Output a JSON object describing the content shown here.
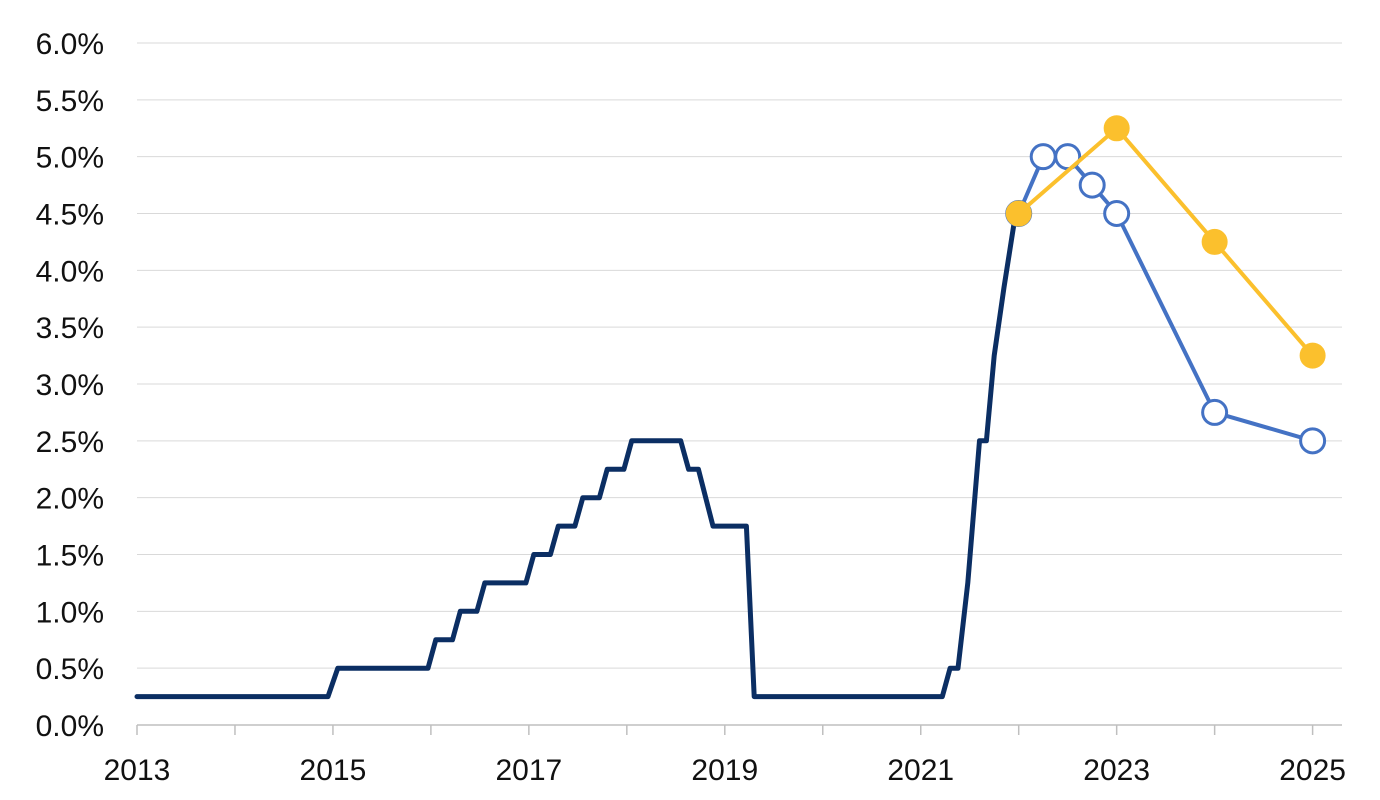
{
  "chart_data": {
    "type": "line",
    "title": "",
    "xlabel": "",
    "ylabel": "",
    "xlim": [
      2013,
      2025.3
    ],
    "ylim": [
      0,
      6
    ],
    "grid": true,
    "x_ticks": [
      {
        "value": 2013,
        "label": "2013"
      },
      {
        "value": 2015,
        "label": "2015"
      },
      {
        "value": 2017,
        "label": "2017"
      },
      {
        "value": 2019,
        "label": "2019"
      },
      {
        "value": 2021,
        "label": "2021"
      },
      {
        "value": 2023,
        "label": "2023"
      },
      {
        "value": 2025,
        "label": "2025"
      }
    ],
    "x_minor_ticks": [
      2014,
      2016,
      2018,
      2020,
      2022,
      2024
    ],
    "y_ticks": [
      {
        "value": 0.0,
        "label": "0.0%"
      },
      {
        "value": 0.5,
        "label": "0.5%"
      },
      {
        "value": 1.0,
        "label": "1.0%"
      },
      {
        "value": 1.5,
        "label": "1.5%"
      },
      {
        "value": 2.0,
        "label": "2.0%"
      },
      {
        "value": 2.5,
        "label": "2.5%"
      },
      {
        "value": 3.0,
        "label": "3.0%"
      },
      {
        "value": 3.5,
        "label": "3.5%"
      },
      {
        "value": 4.0,
        "label": "4.0%"
      },
      {
        "value": 4.5,
        "label": "4.5%"
      },
      {
        "value": 5.0,
        "label": "5.0%"
      },
      {
        "value": 5.5,
        "label": "5.5%"
      },
      {
        "value": 6.0,
        "label": "6.0%"
      }
    ],
    "series": [
      {
        "color": "#0b2e63",
        "marker": "none",
        "points": [
          [
            2013.0,
            0.25
          ],
          [
            2014.95,
            0.25
          ],
          [
            2015.05,
            0.5
          ],
          [
            2015.97,
            0.5
          ],
          [
            2016.05,
            0.75
          ],
          [
            2016.22,
            0.75
          ],
          [
            2016.3,
            1.0
          ],
          [
            2016.47,
            1.0
          ],
          [
            2016.55,
            1.25
          ],
          [
            2016.97,
            1.25
          ],
          [
            2017.05,
            1.5
          ],
          [
            2017.22,
            1.5
          ],
          [
            2017.3,
            1.75
          ],
          [
            2017.47,
            1.75
          ],
          [
            2017.55,
            2.0
          ],
          [
            2017.72,
            2.0
          ],
          [
            2017.8,
            2.25
          ],
          [
            2017.97,
            2.25
          ],
          [
            2018.05,
            2.5
          ],
          [
            2018.55,
            2.5
          ],
          [
            2018.63,
            2.25
          ],
          [
            2018.73,
            2.25
          ],
          [
            2018.88,
            1.75
          ],
          [
            2019.22,
            1.75
          ],
          [
            2019.3,
            0.25
          ],
          [
            2021.22,
            0.25
          ],
          [
            2021.3,
            0.5
          ],
          [
            2021.38,
            0.5
          ],
          [
            2021.48,
            1.25
          ],
          [
            2021.6,
            2.5
          ],
          [
            2021.67,
            2.5
          ],
          [
            2021.75,
            3.25
          ],
          [
            2021.85,
            3.85
          ],
          [
            2021.95,
            4.4
          ],
          [
            2022.0,
            4.5
          ]
        ]
      },
      {
        "color": "#4472c4",
        "marker": "open-circle",
        "points": [
          [
            2022.0,
            4.5
          ],
          [
            2022.25,
            5.0
          ],
          [
            2022.5,
            5.0
          ],
          [
            2022.75,
            4.75
          ],
          [
            2023.0,
            4.5
          ],
          [
            2024.0,
            2.75
          ],
          [
            2025.0,
            2.5
          ]
        ]
      },
      {
        "color": "#fbc02d",
        "marker": "filled-circle",
        "points": [
          [
            2022.0,
            4.5
          ],
          [
            2023.0,
            5.25
          ],
          [
            2024.0,
            4.25
          ],
          [
            2025.0,
            3.25
          ]
        ]
      }
    ]
  }
}
